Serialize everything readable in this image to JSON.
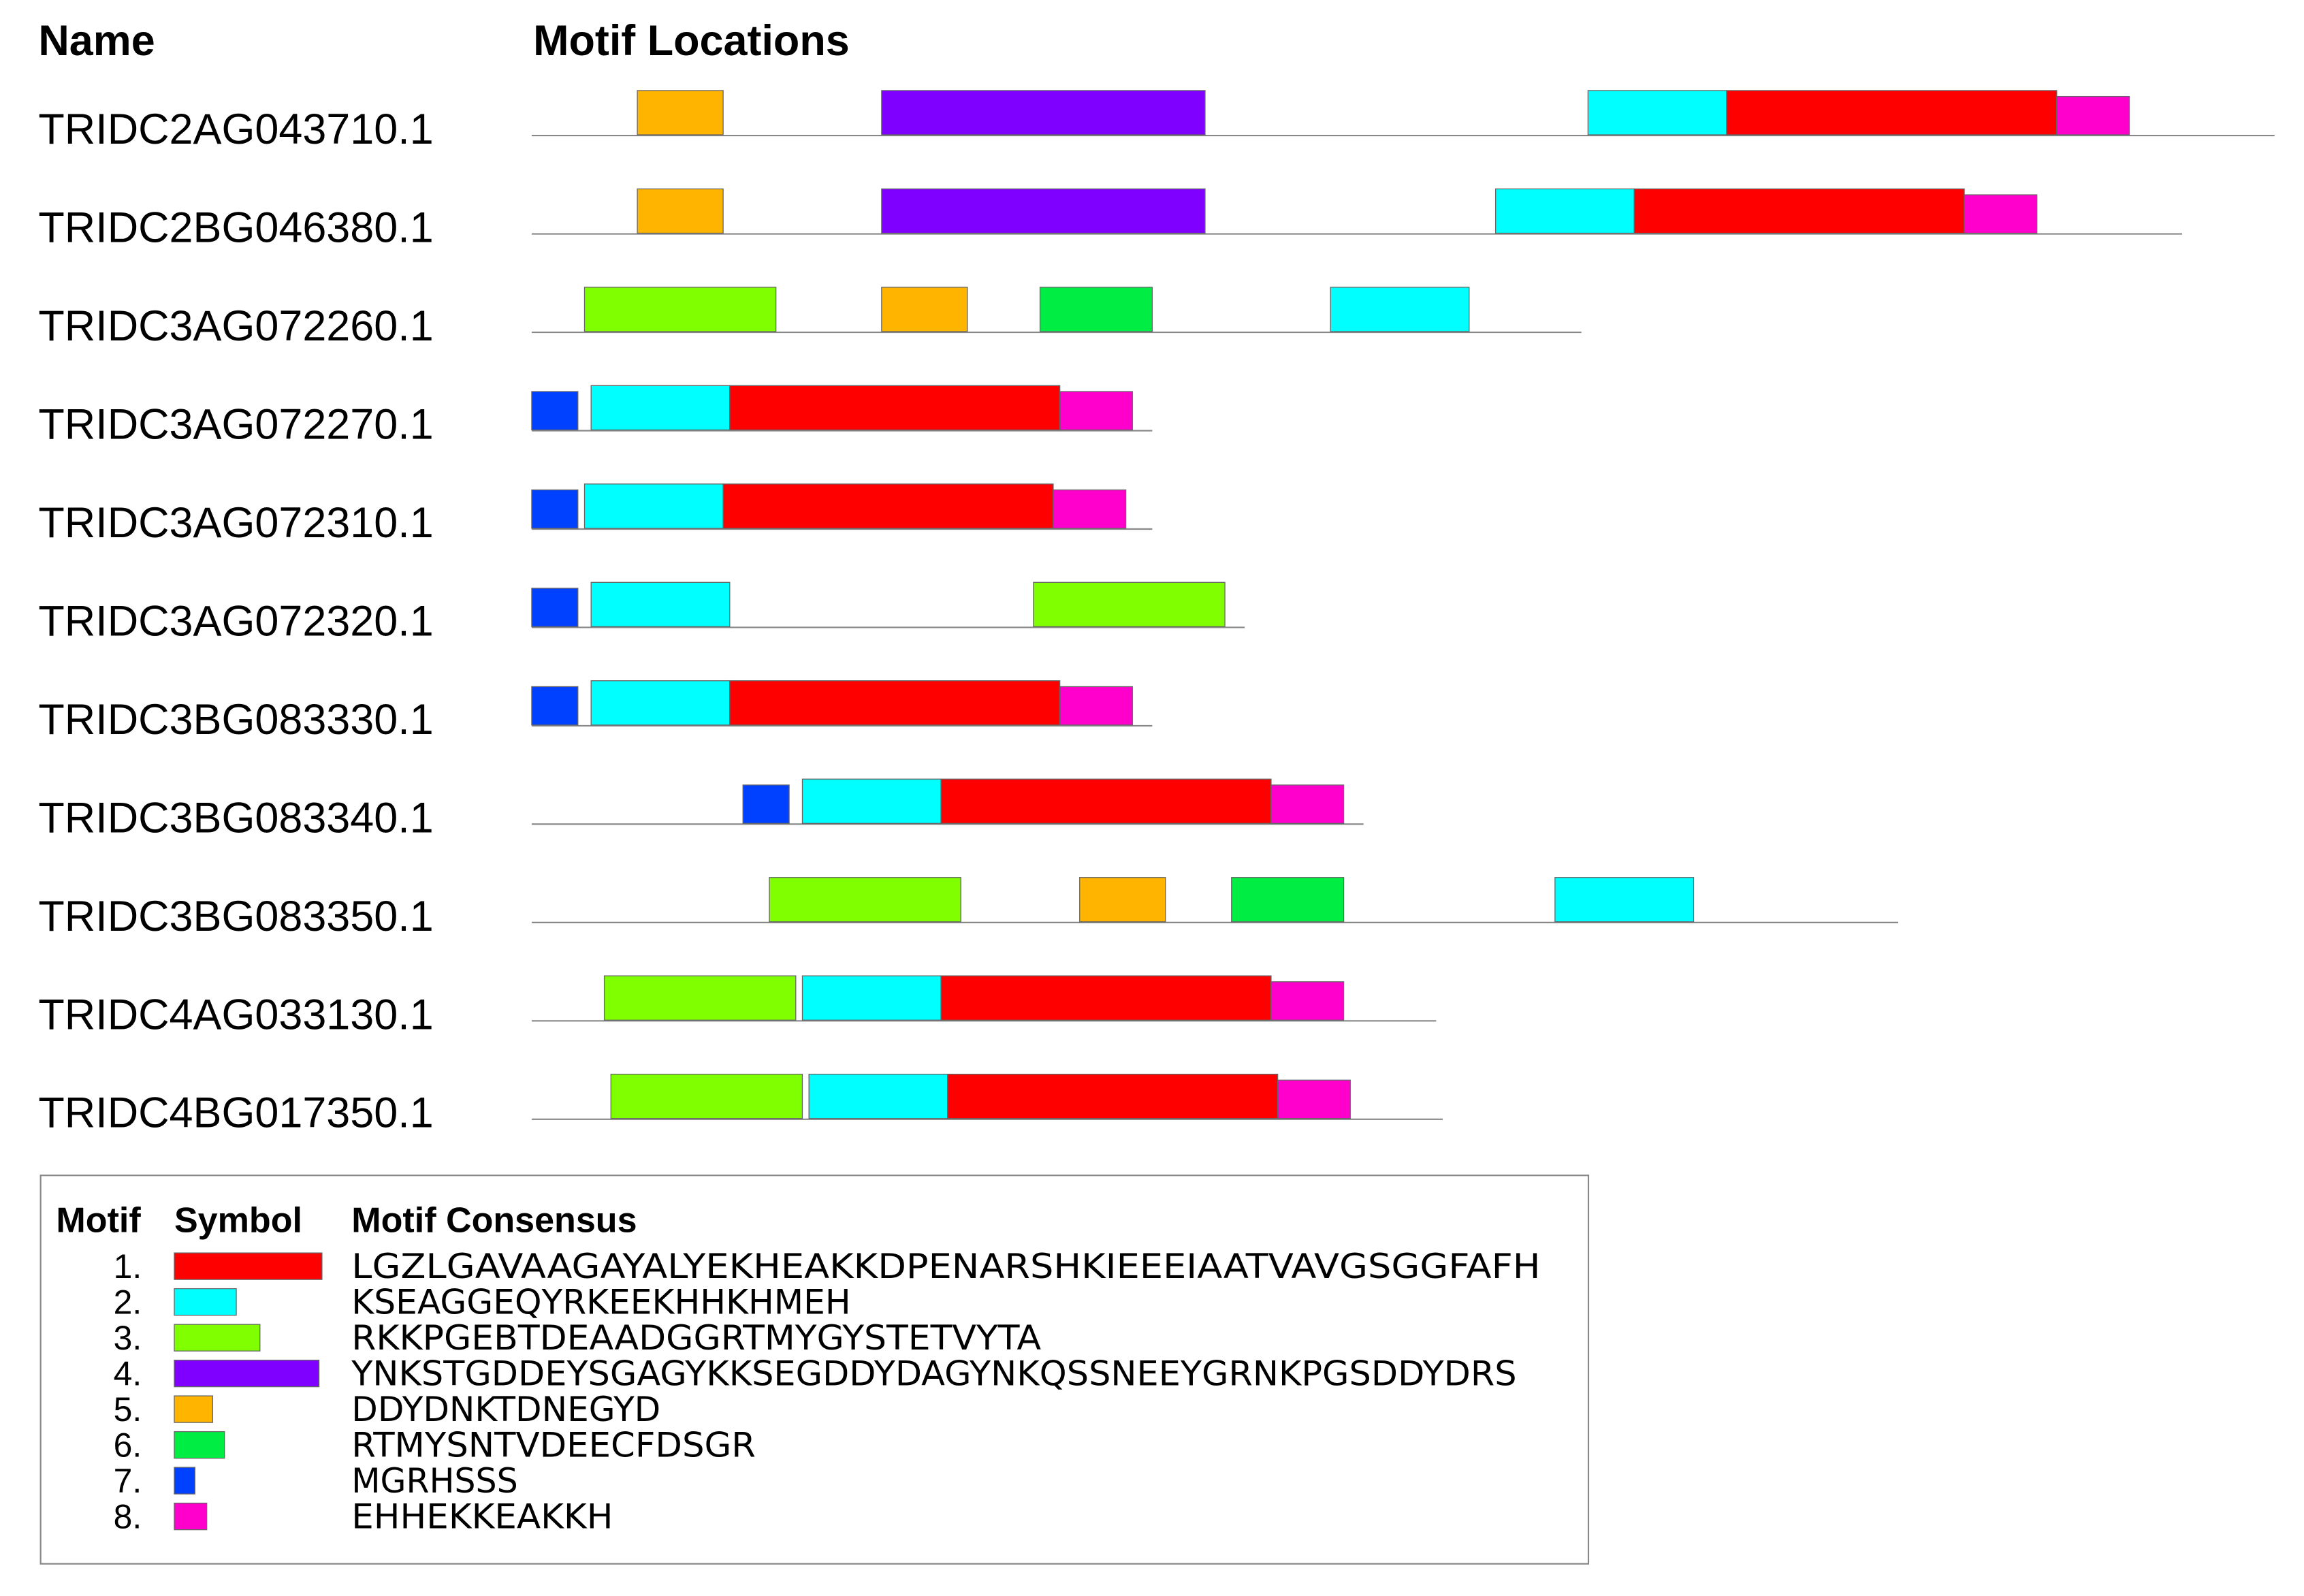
{
  "header": {
    "name": "Name",
    "locations": "Motif Locations"
  },
  "sequences": [
    {
      "name": "TRIDC2AG043710.1",
      "length": 264,
      "sites": [
        {
          "motif": 5,
          "start": 16
        },
        {
          "motif": 4,
          "start": 53
        },
        {
          "motif": 2,
          "start": 160
        },
        {
          "motif": 1,
          "start": 181
        },
        {
          "motif": 8,
          "start": 231
        }
      ]
    },
    {
      "name": "TRIDC2BG046380.1",
      "length": 250,
      "sites": [
        {
          "motif": 5,
          "start": 16
        },
        {
          "motif": 4,
          "start": 53
        },
        {
          "motif": 2,
          "start": 146
        },
        {
          "motif": 1,
          "start": 167
        },
        {
          "motif": 8,
          "start": 217
        }
      ]
    },
    {
      "name": "TRIDC3AG072260.1",
      "length": 159,
      "sites": [
        {
          "motif": 3,
          "start": 8
        },
        {
          "motif": 5,
          "start": 53
        },
        {
          "motif": 6,
          "start": 77
        },
        {
          "motif": 2,
          "start": 121
        }
      ]
    },
    {
      "name": "TRIDC3AG072270.1",
      "length": 94,
      "sites": [
        {
          "motif": 7,
          "start": 0
        },
        {
          "motif": 2,
          "start": 9
        },
        {
          "motif": 1,
          "start": 30
        },
        {
          "motif": 8,
          "start": 80
        }
      ]
    },
    {
      "name": "TRIDC3AG072310.1",
      "length": 94,
      "sites": [
        {
          "motif": 7,
          "start": 0
        },
        {
          "motif": 2,
          "start": 8
        },
        {
          "motif": 1,
          "start": 29
        },
        {
          "motif": 8,
          "start": 79
        }
      ]
    },
    {
      "name": "TRIDC3AG072320.1",
      "length": 108,
      "sites": [
        {
          "motif": 7,
          "start": 0
        },
        {
          "motif": 2,
          "start": 9
        },
        {
          "motif": 3,
          "start": 76
        }
      ]
    },
    {
      "name": "TRIDC3BG083330.1",
      "length": 94,
      "sites": [
        {
          "motif": 7,
          "start": 0
        },
        {
          "motif": 2,
          "start": 9
        },
        {
          "motif": 1,
          "start": 30
        },
        {
          "motif": 8,
          "start": 80
        }
      ]
    },
    {
      "name": "TRIDC3BG083340.1",
      "length": 126,
      "sites": [
        {
          "motif": 7,
          "start": 32
        },
        {
          "motif": 2,
          "start": 41
        },
        {
          "motif": 1,
          "start": 62
        },
        {
          "motif": 8,
          "start": 112
        }
      ]
    },
    {
      "name": "TRIDC3BG083350.1",
      "length": 207,
      "sites": [
        {
          "motif": 3,
          "start": 36
        },
        {
          "motif": 5,
          "start": 83
        },
        {
          "motif": 6,
          "start": 106
        },
        {
          "motif": 2,
          "start": 155
        }
      ]
    },
    {
      "name": "TRIDC4AG033130.1",
      "length": 137,
      "sites": [
        {
          "motif": 3,
          "start": 11
        },
        {
          "motif": 2,
          "start": 41
        },
        {
          "motif": 1,
          "start": 62
        },
        {
          "motif": 8,
          "start": 112
        }
      ]
    },
    {
      "name": "TRIDC4BG017350.1",
      "length": 138,
      "sites": [
        {
          "motif": 3,
          "start": 12
        },
        {
          "motif": 2,
          "start": 42
        },
        {
          "motif": 1,
          "start": 63
        },
        {
          "motif": 8,
          "start": 113
        }
      ]
    }
  ],
  "legend": {
    "headers": [
      "Motif",
      "Symbol",
      "Motif Consensus"
    ],
    "motifs": [
      {
        "label": "1.",
        "color": "#ff0000",
        "consensus": "LGZLGAVAAGAYALYEKHEAKKDPENARSHKIEEEIAATVAVGSGGFAFH"
      },
      {
        "label": "2.",
        "color": "#00ffff",
        "consensus": "KSEAGGEQYRKEEKHHKHMEH"
      },
      {
        "label": "3.",
        "color": "#80ff00",
        "consensus": "RKKPGEBTDEAADGGRTMYGYSTETVYTA"
      },
      {
        "label": "4.",
        "color": "#8000ff",
        "consensus": "YNKSTGDDEYSGAGYKKSEGDDYDAGYNKQSSNEEYGRNKPGSDDYDRS"
      },
      {
        "label": "5.",
        "color": "#ffb400",
        "consensus": "DDYDNKTDNEGYD"
      },
      {
        "label": "6.",
        "color": "#00ee44",
        "consensus": "RTMYSNTVDEECFDSGR"
      },
      {
        "label": "7.",
        "color": "#0040ff",
        "consensus": "MGRHSSS"
      },
      {
        "label": "8.",
        "color": "#ff00cc",
        "consensus": "EHHEKKEAKKH"
      }
    ]
  }
}
